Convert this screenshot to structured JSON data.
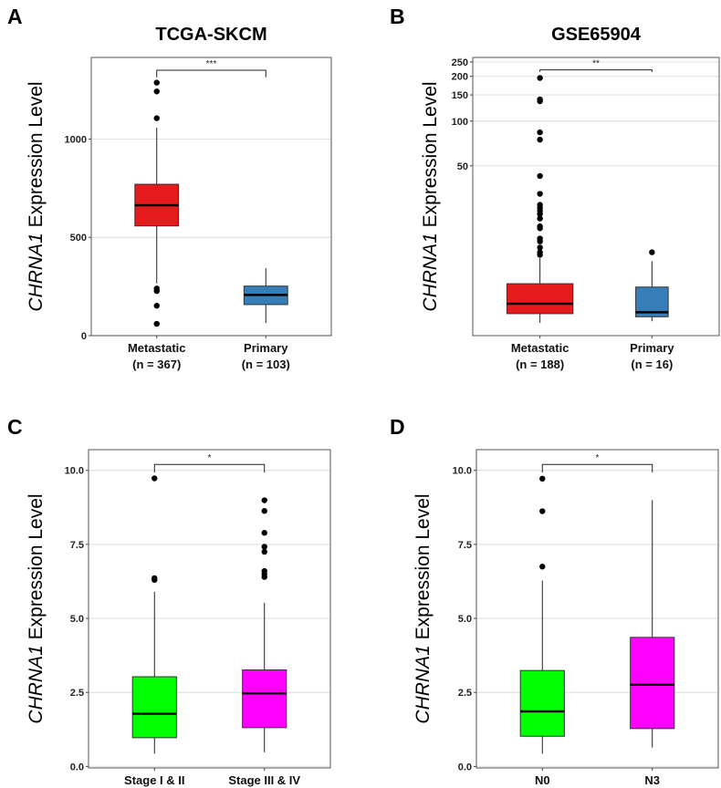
{
  "chart_data": [
    {
      "panel_label": "A",
      "type": "box",
      "title": "TCGA-SKCM",
      "ylabel_gene": "CHRNA1",
      "ylabel_rest": " Expression Level",
      "yscale": "linear",
      "ylim": [
        0,
        1415
      ],
      "yticks": [
        0,
        500,
        1000
      ],
      "ytick_labels": [
        "0",
        "500",
        "1000"
      ],
      "grid": true,
      "categories": [
        {
          "label": "Metastatic",
          "n_label": "(n = 367)"
        },
        {
          "label": "Primary",
          "n_label": "(n = 103)"
        }
      ],
      "boxes": [
        {
          "color": "#E41A1C",
          "q1": 558,
          "median": 663,
          "q3": 770,
          "whisker_low": 266,
          "whisker_high": 1058,
          "outliers": [
            1287,
            1242,
            1106,
            240,
            227,
            152,
            60
          ]
        },
        {
          "color": "#377EB8",
          "q1": 158,
          "median": 207,
          "q3": 252,
          "whisker_low": 64,
          "whisker_high": 343,
          "outliers": []
        }
      ],
      "significance": {
        "label": "***",
        "bracket_y": 1350,
        "tip_y": 1314
      }
    },
    {
      "panel_label": "B",
      "type": "box",
      "title": "GSE65904",
      "ylabel_gene": "CHRNA1",
      "ylabel_rest": " Expression Level",
      "yscale": "log10",
      "ylim": [
        3.6,
        268
      ],
      "yticks": [
        50,
        100,
        150,
        200,
        250
      ],
      "ytick_labels": [
        "50",
        "100",
        "150",
        "200",
        "250"
      ],
      "grid": true,
      "categories": [
        {
          "label": "Metastatic",
          "n_label": "(n = 188)"
        },
        {
          "label": "Primary",
          "n_label": "(n = 16)"
        }
      ],
      "boxes": [
        {
          "color": "#E41A1C",
          "q1": 5.06,
          "median": 5.9,
          "q3": 8.05,
          "whisker_low": 4.39,
          "whisker_high": 12.0,
          "outliers": [
            195,
            140,
            136,
            84,
            75,
            42.7,
            32.4,
            27.3,
            26.0,
            24.8,
            23.7,
            22.1,
            19.6,
            19.0,
            16.2,
            15.5,
            14.1,
            13.1,
            12.6
          ]
        },
        {
          "color": "#377EB8",
          "q1": 4.82,
          "median": 5.17,
          "q3": 7.64,
          "whisker_low": 4.5,
          "whisker_high": 11.4,
          "outliers": [
            13.1
          ]
        }
      ],
      "significance": {
        "label": "**",
        "bracket_y": 221,
        "tip_y": 214
      }
    },
    {
      "panel_label": "C",
      "type": "box",
      "title": "",
      "ylabel_gene": "CHRNA1",
      "ylabel_rest": " Expression Level",
      "yscale": "linear",
      "ylim": [
        -0.05,
        10.7
      ],
      "yticks": [
        0,
        2.5,
        5,
        7.5,
        10
      ],
      "ytick_labels": [
        "0.0",
        "2.5",
        "5.0",
        "7.5",
        "10.0"
      ],
      "grid": true,
      "categories": [
        {
          "label": "Stage I & II",
          "n_label": ""
        },
        {
          "label": "Stage III & IV",
          "n_label": ""
        }
      ],
      "boxes": [
        {
          "color": "#00FF00",
          "q1": 0.97,
          "median": 1.78,
          "q3": 3.03,
          "whisker_low": 0.43,
          "whisker_high": 5.9,
          "outliers": [
            9.73,
            6.36,
            6.3
          ]
        },
        {
          "color": "#FF00FF",
          "q1": 1.31,
          "median": 2.47,
          "q3": 3.26,
          "whisker_low": 0.48,
          "whisker_high": 5.53,
          "outliers": [
            8.99,
            8.63,
            7.89,
            7.42,
            7.25,
            6.6,
            6.5,
            6.4
          ]
        }
      ],
      "significance": {
        "label": "*",
        "bracket_y": 10.2,
        "tip_y": 9.93
      }
    },
    {
      "panel_label": "D",
      "type": "box",
      "title": "",
      "ylabel_gene": "CHRNA1",
      "ylabel_rest": " Expression Level",
      "yscale": "linear",
      "ylim": [
        -0.05,
        10.7
      ],
      "yticks": [
        0,
        2.5,
        5,
        7.5,
        10
      ],
      "ytick_labels": [
        "0.0",
        "2.5",
        "5.0",
        "7.5",
        "10.0"
      ],
      "grid": true,
      "categories": [
        {
          "label": "N0",
          "n_label": ""
        },
        {
          "label": "N3",
          "n_label": ""
        }
      ],
      "boxes": [
        {
          "color": "#00FF00",
          "q1": 1.02,
          "median": 1.86,
          "q3": 3.24,
          "whisker_low": 0.43,
          "whisker_high": 6.28,
          "outliers": [
            9.72,
            8.62,
            6.75
          ]
        },
        {
          "color": "#FF00FF",
          "q1": 1.28,
          "median": 2.76,
          "q3": 4.36,
          "whisker_low": 0.64,
          "whisker_high": 9.0,
          "outliers": []
        }
      ],
      "significance": {
        "label": "*",
        "bracket_y": 10.2,
        "tip_y": 9.93
      }
    }
  ]
}
